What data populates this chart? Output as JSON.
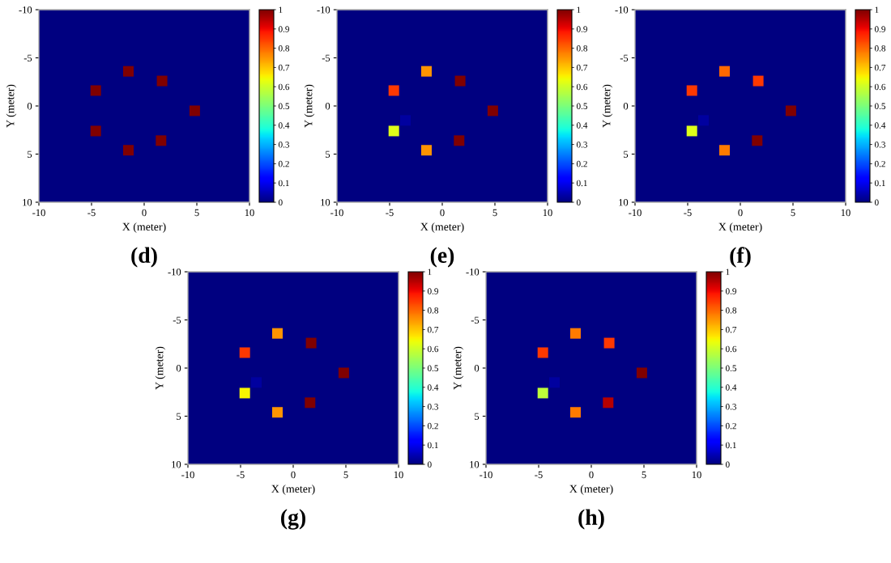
{
  "chart_data": [
    {
      "type": "scatter",
      "title": "(d)",
      "xlabel": "X (meter)",
      "ylabel": "Y (meter)",
      "marker": "square",
      "xlim": [
        -10,
        10
      ],
      "ylim": [
        10,
        -10
      ],
      "xticks": [
        -10,
        -5,
        0,
        5,
        10
      ],
      "yticks": [
        -10,
        -5,
        0,
        5,
        10
      ],
      "clim": [
        0,
        1
      ],
      "cticks": [
        0,
        0.1,
        0.2,
        0.3,
        0.4,
        0.5,
        0.6,
        0.7,
        0.8,
        0.9,
        1
      ],
      "x": [
        -1.5,
        1.7,
        -4.6,
        4.8,
        -4.6,
        1.6,
        -1.5
      ],
      "values": [
        -3.6,
        -2.6,
        -1.6,
        0.5,
        2.6,
        3.6,
        4.6
      ],
      "cvalues": [
        1,
        1,
        1,
        1,
        1,
        1,
        1
      ]
    },
    {
      "type": "scatter",
      "title": "(e)",
      "xlabel": "X (meter)",
      "ylabel": "Y (meter)",
      "marker": "square",
      "xlim": [
        -10,
        10
      ],
      "ylim": [
        10,
        -10
      ],
      "xticks": [
        -10,
        -5,
        0,
        5,
        10
      ],
      "yticks": [
        -10,
        -5,
        0,
        5,
        10
      ],
      "clim": [
        0,
        1
      ],
      "cticks": [
        0,
        0.1,
        0.2,
        0.3,
        0.4,
        0.5,
        0.6,
        0.7,
        0.8,
        0.9,
        1
      ],
      "x": [
        -1.5,
        1.7,
        -4.6,
        4.8,
        -4.6,
        1.6,
        -1.5,
        -3.5
      ],
      "values": [
        -3.6,
        -2.6,
        -1.6,
        0.5,
        2.6,
        3.6,
        4.6,
        1.5
      ],
      "cvalues": [
        0.75,
        1,
        0.85,
        1,
        0.62,
        1,
        0.75,
        0.03
      ]
    },
    {
      "type": "scatter",
      "title": "(f)",
      "xlabel": "X (meter)",
      "ylabel": "Y (meter)",
      "marker": "square",
      "xlim": [
        -10,
        10
      ],
      "ylim": [
        10,
        -10
      ],
      "xticks": [
        -10,
        -5,
        0,
        5,
        10
      ],
      "yticks": [
        -10,
        -5,
        0,
        5,
        10
      ],
      "clim": [
        0,
        1
      ],
      "cticks": [
        0,
        0.1,
        0.2,
        0.3,
        0.4,
        0.5,
        0.6,
        0.7,
        0.8,
        0.9,
        1
      ],
      "x": [
        -1.5,
        1.7,
        -4.6,
        4.8,
        -4.6,
        1.6,
        -1.5,
        -3.5
      ],
      "values": [
        -3.6,
        -2.6,
        -1.6,
        0.5,
        2.6,
        3.6,
        4.6,
        1.5
      ],
      "cvalues": [
        0.8,
        0.85,
        0.85,
        1,
        0.62,
        1,
        0.78,
        0.03
      ]
    },
    {
      "type": "scatter",
      "title": "(g)",
      "xlabel": "X (meter)",
      "ylabel": "Y (meter)",
      "marker": "square",
      "xlim": [
        -10,
        10
      ],
      "ylim": [
        10,
        -10
      ],
      "xticks": [
        -10,
        -5,
        0,
        5,
        10
      ],
      "yticks": [
        -10,
        -5,
        0,
        5,
        10
      ],
      "clim": [
        0,
        1
      ],
      "cticks": [
        0,
        0.1,
        0.2,
        0.3,
        0.4,
        0.5,
        0.6,
        0.7,
        0.8,
        0.9,
        1
      ],
      "x": [
        -1.5,
        1.7,
        -4.6,
        4.8,
        -4.6,
        1.6,
        -1.5,
        -3.5
      ],
      "values": [
        -3.6,
        -2.6,
        -1.6,
        0.5,
        2.6,
        3.6,
        4.6,
        1.5
      ],
      "cvalues": [
        0.75,
        1,
        0.85,
        1,
        0.65,
        1,
        0.75,
        0.03
      ]
    },
    {
      "type": "scatter",
      "title": "(h)",
      "xlabel": "X (meter)",
      "ylabel": "Y (meter)",
      "marker": "square",
      "xlim": [
        -10,
        10
      ],
      "ylim": [
        10,
        -10
      ],
      "xticks": [
        -10,
        -5,
        0,
        5,
        10
      ],
      "yticks": [
        -10,
        -5,
        0,
        5,
        10
      ],
      "clim": [
        0,
        1
      ],
      "cticks": [
        0,
        0.1,
        0.2,
        0.3,
        0.4,
        0.5,
        0.6,
        0.7,
        0.8,
        0.9,
        1
      ],
      "x": [
        -1.5,
        1.7,
        -4.6,
        4.8,
        -4.6,
        1.6,
        -1.5,
        -3.5
      ],
      "values": [
        -3.6,
        -2.6,
        -1.6,
        0.5,
        2.6,
        3.6,
        4.6,
        1.5
      ],
      "cvalues": [
        0.78,
        0.85,
        0.85,
        1,
        0.58,
        0.95,
        0.78,
        0.03
      ]
    }
  ]
}
